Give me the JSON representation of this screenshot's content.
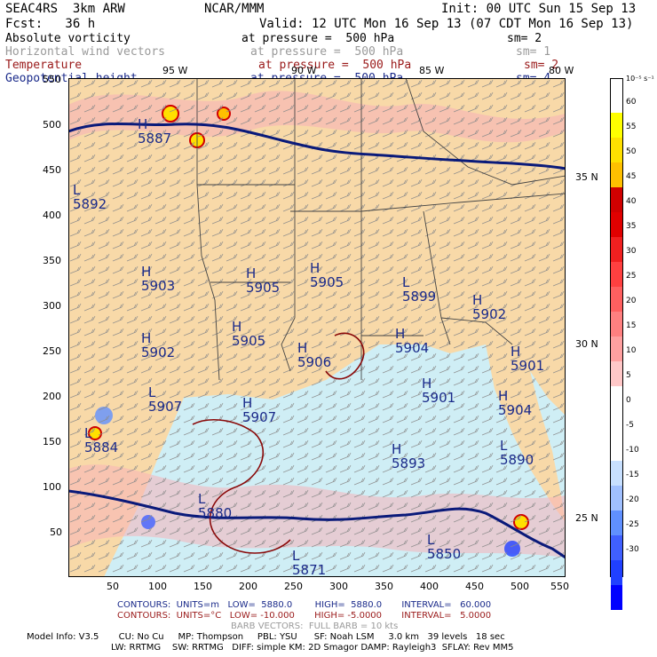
{
  "header": {
    "model": "SEAC4RS  3km ARW",
    "center": "NCAR/MMM",
    "init": "Init: 00 UTC Sun 15 Sep 13",
    "fcst": "Fcst:   36 h",
    "valid": "Valid: 12 UTC Mon 16 Sep 13 (07 CDT Mon 16 Sep 13)"
  },
  "fields": [
    {
      "name": "Absolute vorticity",
      "level": "at pressure =  500 hPa",
      "sm": "sm= 2",
      "style": "black"
    },
    {
      "name": "Horizontal wind vectors",
      "level": "at pressure =  500 hPa",
      "sm": "sm= 1",
      "style": "gray"
    },
    {
      "name": "Temperature",
      "level": "at pressure =  500 hPa",
      "sm": "sm= 2",
      "style": "red"
    },
    {
      "name": "Geopotential height",
      "level": "at pressure =  500 hPa",
      "sm": "sm= 4",
      "style": "blue"
    }
  ],
  "map": {
    "lon_labels": [
      "95 W",
      "90 W",
      "85 W",
      "80 W"
    ],
    "lat_labels": [
      "35 N",
      "30 N",
      "25 N"
    ],
    "x_ticks": [
      "50",
      "100",
      "150",
      "200",
      "250",
      "300",
      "350",
      "400",
      "450",
      "500",
      "550"
    ],
    "y_ticks": [
      "550",
      "500",
      "450",
      "400",
      "350",
      "300",
      "250",
      "200",
      "150",
      "100",
      "50"
    ],
    "highs_lows": [
      {
        "t": "H",
        "v": "5887"
      },
      {
        "t": "L",
        "v": "5892"
      },
      {
        "t": "H",
        "v": "5903"
      },
      {
        "t": "H",
        "v": "5905"
      },
      {
        "t": "H",
        "v": "5905"
      },
      {
        "t": "L",
        "v": "5899"
      },
      {
        "t": "H",
        "v": "5902"
      },
      {
        "t": "H",
        "v": "5902"
      },
      {
        "t": "H",
        "v": "5905"
      },
      {
        "t": "H",
        "v": "5904"
      },
      {
        "t": "H",
        "v": "5901"
      },
      {
        "t": "H",
        "v": "5906"
      },
      {
        "t": "H",
        "v": "5901"
      },
      {
        "t": "H",
        "v": "5904"
      },
      {
        "t": "H",
        "v": "5907"
      },
      {
        "t": "L",
        "v": "5907"
      },
      {
        "t": "L",
        "v": "5884"
      },
      {
        "t": "H",
        "v": "5893"
      },
      {
        "t": "L",
        "v": "5890"
      },
      {
        "t": "L",
        "v": "5880"
      },
      {
        "t": "L",
        "v": "5850"
      },
      {
        "t": "L",
        "v": "5871"
      }
    ]
  },
  "colorbar": {
    "unit": "10⁻⁵ s⁻¹",
    "levels": [
      "60",
      "55",
      "50",
      "45",
      "40",
      "35",
      "30",
      "25",
      "20",
      "15",
      "10",
      "5",
      "0",
      "-5",
      "-10",
      "-15",
      "-20",
      "-25",
      "-30"
    ],
    "colors": [
      "#ffff00",
      "#ffe000",
      "#ffc000",
      "#d00000",
      "#e00000",
      "#f02020",
      "#ff4040",
      "#ff6060",
      "#ff8080",
      "#ffa0a0",
      "#ffc8c8",
      "#ffffff",
      "#ffffff",
      "#ffffff",
      "#c8e0ff",
      "#a0c0ff",
      "#6090ff",
      "#4060ff",
      "#2040ff",
      "#0000ff"
    ]
  },
  "footer": {
    "contours1": "CONTOURS:  UNITS=m   LOW=  5880.0        HIGH=  5880.0       INTERVAL=   60.000",
    "contours2": "CONTOURS:  UNITS=°C   LOW= -10.000       HIGH= -5.0000       INTERVAL=   5.0000",
    "barbs": "BARB VECTORS:  FULL BARB = 10 kts",
    "info1": "Model Info: V3.5       CU: No Cu     MP: Thompson     PBL: YSU      SF: Noah LSM     3.0 km   39 levels   18 sec",
    "info2": "LW: RRTMG    SW: RRTMG   DIFF: simple KM: 2D Smagor DAMP: Rayleigh3  SFLAY: Rev MM5"
  }
}
